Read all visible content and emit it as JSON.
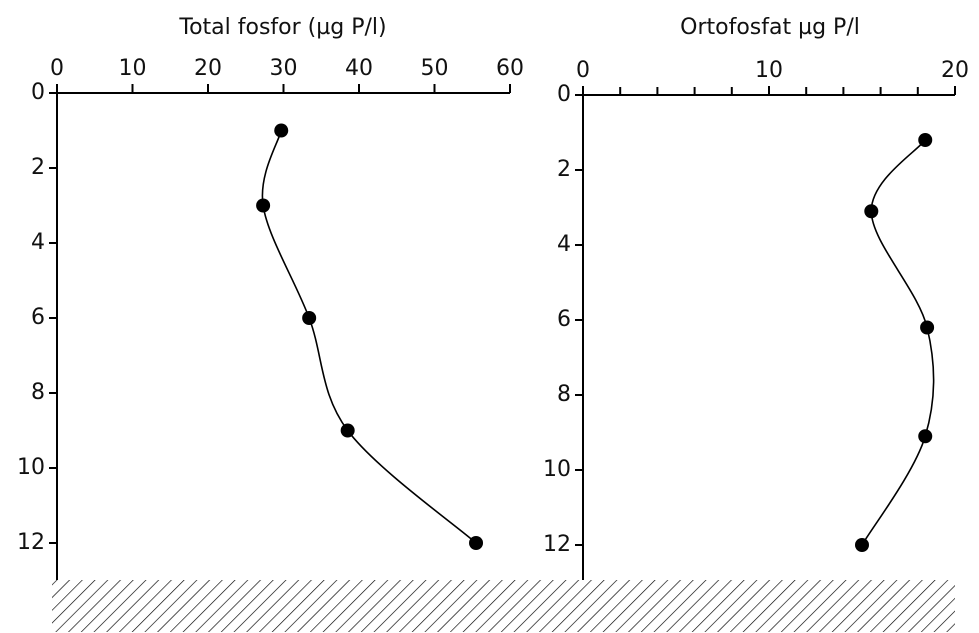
{
  "chart_data": [
    {
      "type": "line",
      "title": "Total fosfor (µg P/l)",
      "depth": [
        1,
        3,
        6,
        9,
        12
      ],
      "values": [
        29.7,
        27.3,
        33.4,
        38.5,
        55.5
      ],
      "xlim": [
        0,
        60
      ],
      "xticks": [
        0,
        10,
        20,
        30,
        40,
        50,
        60
      ],
      "xminor": [],
      "ylim": [
        0,
        13
      ],
      "yticks": [
        0,
        2,
        4,
        6,
        8,
        10,
        12
      ],
      "color": "#000000"
    },
    {
      "type": "line",
      "title": "Ortofosfat µg P/l",
      "depth": [
        1.2,
        3.1,
        6.2,
        9.1,
        12
      ],
      "values": [
        18.4,
        15.5,
        18.5,
        18.4,
        15.0
      ],
      "xlim": [
        0,
        20
      ],
      "xticks": [
        0,
        10,
        20
      ],
      "xminor": [
        2,
        4,
        6,
        8,
        12,
        14,
        16,
        18
      ],
      "ylim": [
        0,
        13
      ],
      "yticks": [
        0,
        2,
        4,
        6,
        8,
        10,
        12
      ],
      "color": "#000000"
    }
  ]
}
